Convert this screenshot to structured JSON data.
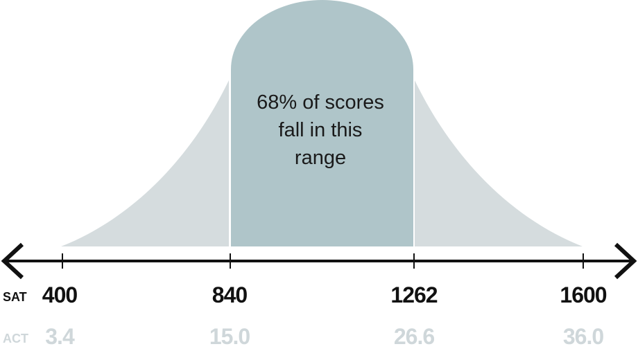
{
  "band_label_lines": [
    "68% of scores",
    "fall in this",
    "range"
  ],
  "scales": {
    "sat": {
      "title": "SAT",
      "ticks": [
        "400",
        "840",
        "1262",
        "1600"
      ]
    },
    "act": {
      "title": "ACT",
      "ticks": [
        "3.4",
        "15.0",
        "26.6",
        "36.0"
      ]
    }
  },
  "colors": {
    "tail_fill": "#d5dcde",
    "band_fill": "#afc5c9",
    "axis": "#111111",
    "act_text": "#cfd7da"
  }
}
